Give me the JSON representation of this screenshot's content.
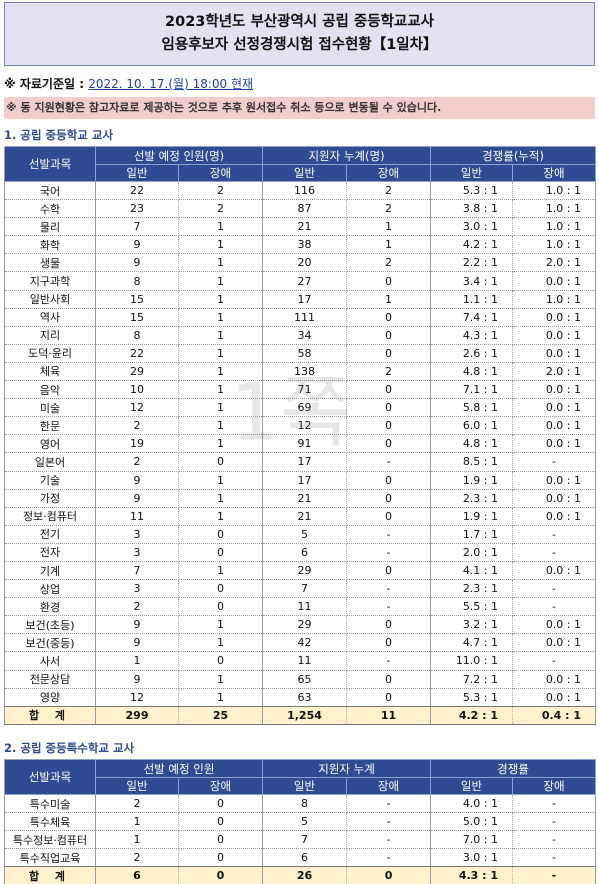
{
  "title": {
    "line1": "2023학년도 부산광역시 공립 중등학교교사",
    "line2": "임용후보자 선정경쟁시험 접수현황【1일차】"
  },
  "ref": {
    "label": "※ 자료기준일 : ",
    "value": "2022. 10. 17.(월) 18:00 현재"
  },
  "notice": "※ 동 지원현황은 참고자료로 제공하는 것으로 추후 원서접수 취소 등으로  변동될 수 있습니다.",
  "watermark": "1쪽",
  "section1": {
    "title": "1. 공립 중등학교 교사",
    "headers": {
      "subject": "선발과목",
      "plan": "선발 예정 인원(명)",
      "applicants": "지원자 누계(명)",
      "ratio": "경쟁률(누적)",
      "general": "일반",
      "disabled": "장애"
    },
    "rows": [
      [
        "국어",
        "22",
        "2",
        "116",
        "2",
        "5.3 : 1",
        "1.0 : 1"
      ],
      [
        "수학",
        "23",
        "2",
        "87",
        "2",
        "3.8 : 1",
        "1.0 : 1"
      ],
      [
        "물리",
        "7",
        "1",
        "21",
        "1",
        "3.0 : 1",
        "1.0 : 1"
      ],
      [
        "화학",
        "9",
        "1",
        "38",
        "1",
        "4.2 : 1",
        "1.0 : 1"
      ],
      [
        "생물",
        "9",
        "1",
        "20",
        "2",
        "2.2 : 1",
        "2.0 : 1"
      ],
      [
        "지구과학",
        "8",
        "1",
        "27",
        "0",
        "3.4 : 1",
        "0.0 : 1"
      ],
      [
        "일반사회",
        "15",
        "1",
        "17",
        "1",
        "1.1 : 1",
        "1.0 : 1"
      ],
      [
        "역사",
        "15",
        "1",
        "111",
        "0",
        "7.4 : 1",
        "0.0 : 1"
      ],
      [
        "지리",
        "8",
        "1",
        "34",
        "0",
        "4.3 : 1",
        "0.0 : 1"
      ],
      [
        "도덕·윤리",
        "22",
        "1",
        "58",
        "0",
        "2.6 : 1",
        "0.0 : 1"
      ],
      [
        "체육",
        "29",
        "1",
        "138",
        "2",
        "4.8 : 1",
        "2.0 : 1"
      ],
      [
        "음악",
        "10",
        "1",
        "71",
        "0",
        "7.1 : 1",
        "0.0 : 1"
      ],
      [
        "미술",
        "12",
        "1",
        "69",
        "0",
        "5.8 : 1",
        "0.0 : 1"
      ],
      [
        "한문",
        "2",
        "1",
        "12",
        "0",
        "6.0 : 1",
        "0.0 : 1"
      ],
      [
        "영어",
        "19",
        "1",
        "91",
        "0",
        "4.8 : 1",
        "0.0 : 1"
      ],
      [
        "일본어",
        "2",
        "0",
        "17",
        "-",
        "8.5 : 1",
        "-"
      ],
      [
        "기술",
        "9",
        "1",
        "17",
        "0",
        "1.9 : 1",
        "0.0 : 1"
      ],
      [
        "가정",
        "9",
        "1",
        "21",
        "0",
        "2.3 : 1",
        "0.0 : 1"
      ],
      [
        "정보·컴퓨터",
        "11",
        "1",
        "21",
        "0",
        "1.9 : 1",
        "0.0 : 1"
      ],
      [
        "전기",
        "3",
        "0",
        "5",
        "-",
        "1.7 : 1",
        "-"
      ],
      [
        "전자",
        "3",
        "0",
        "6",
        "-",
        "2.0 : 1",
        "-"
      ],
      [
        "기계",
        "7",
        "1",
        "29",
        "0",
        "4.1 : 1",
        "0.0 : 1"
      ],
      [
        "상업",
        "3",
        "0",
        "7",
        "-",
        "2.3 : 1",
        "-"
      ],
      [
        "환경",
        "2",
        "0",
        "11",
        "-",
        "5.5 : 1",
        "-"
      ],
      [
        "보건(초등)",
        "9",
        "1",
        "29",
        "0",
        "3.2 : 1",
        "0.0 : 1"
      ],
      [
        "보건(중등)",
        "9",
        "1",
        "42",
        "0",
        "4.7 : 1",
        "0.0 : 1"
      ],
      [
        "사서",
        "1",
        "0",
        "11",
        "-",
        "11.0 : 1",
        "-"
      ],
      [
        "전문상담",
        "9",
        "1",
        "65",
        "0",
        "7.2 : 1",
        "0.0 : 1"
      ],
      [
        "영양",
        "12",
        "1",
        "63",
        "0",
        "5.3 : 1",
        "0.0 : 1"
      ]
    ],
    "total": [
      "합 계",
      "299",
      "25",
      "1,254",
      "11",
      "4.2 : 1",
      "0.4 : 1"
    ]
  },
  "section2": {
    "title": "2. 공립 중등특수학교 교사",
    "headers": {
      "subject": "선발과목",
      "plan": "선발 예정 인원",
      "applicants": "지원자 누계",
      "ratio": "경쟁률",
      "general": "일반",
      "disabled": "장애"
    },
    "rows": [
      [
        "특수미술",
        "2",
        "0",
        "8",
        "-",
        "4.0 : 1",
        "-"
      ],
      [
        "특수체육",
        "1",
        "0",
        "5",
        "-",
        "5.0 : 1",
        "-"
      ],
      [
        "특수정보·컴퓨터",
        "1",
        "0",
        "7",
        "-",
        "7.0 : 1",
        "-"
      ],
      [
        "특수직업교육",
        "2",
        "0",
        "6",
        "-",
        "3.0 : 1",
        "-"
      ]
    ],
    "total": [
      "합 계",
      "6",
      "0",
      "26",
      "0",
      "4.3 : 1",
      "-"
    ]
  },
  "colors": {
    "header_bg": "#2f4b91",
    "title_bg": "#dfe3f2",
    "notice_bg": "#f4cccc",
    "total_bg": "#fff2cc"
  }
}
